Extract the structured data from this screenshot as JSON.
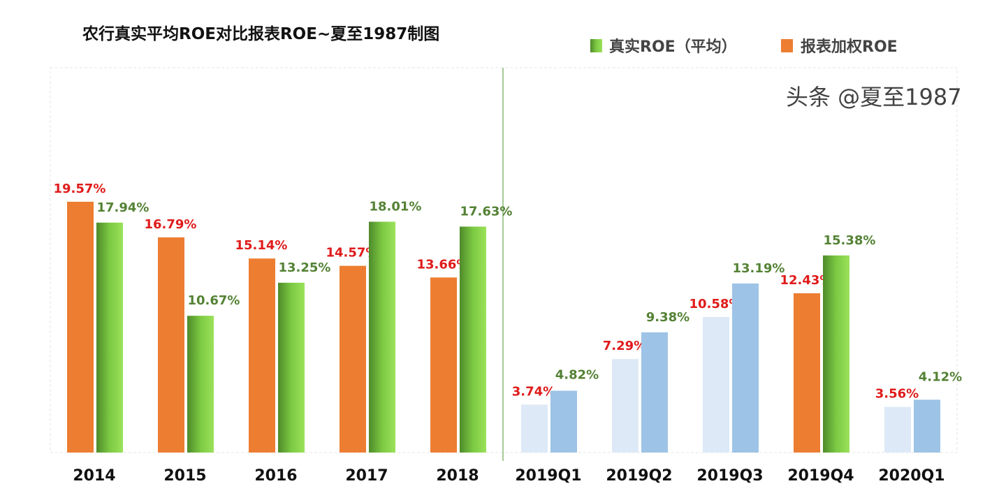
{
  "chart_data": {
    "type": "bar",
    "title": "农行真实平均ROE对比报表ROE~夏至1987制图",
    "categories": [
      "2014",
      "2015",
      "2016",
      "2017",
      "2018",
      "2019Q1",
      "2019Q2",
      "2019Q3",
      "2019Q4",
      "2020Q1"
    ],
    "series": [
      {
        "name": "报表加权ROE",
        "values": [
          19.57,
          16.79,
          15.14,
          14.57,
          13.66,
          3.74,
          7.29,
          10.58,
          12.43,
          3.56
        ],
        "color": "#ed7d31",
        "label_color": "#e01b1b"
      },
      {
        "name": "真实ROE（平均）",
        "values": [
          17.94,
          10.67,
          13.25,
          18.01,
          17.63,
          4.82,
          9.38,
          13.19,
          15.38,
          4.12
        ],
        "color": "#7cc943",
        "label_color": "#548235"
      }
    ],
    "alt_colors": {
      "report": "#dde9f6",
      "real": "#9dc3e6"
    },
    "alt_color_categories": [
      "2019Q1",
      "2019Q2",
      "2019Q3",
      "2020Q1"
    ],
    "value_suffix": "%",
    "ylim": [
      0,
      30
    ],
    "grid": false,
    "legend_position": "top-right"
  },
  "watermark": "头条 @夏至1987"
}
